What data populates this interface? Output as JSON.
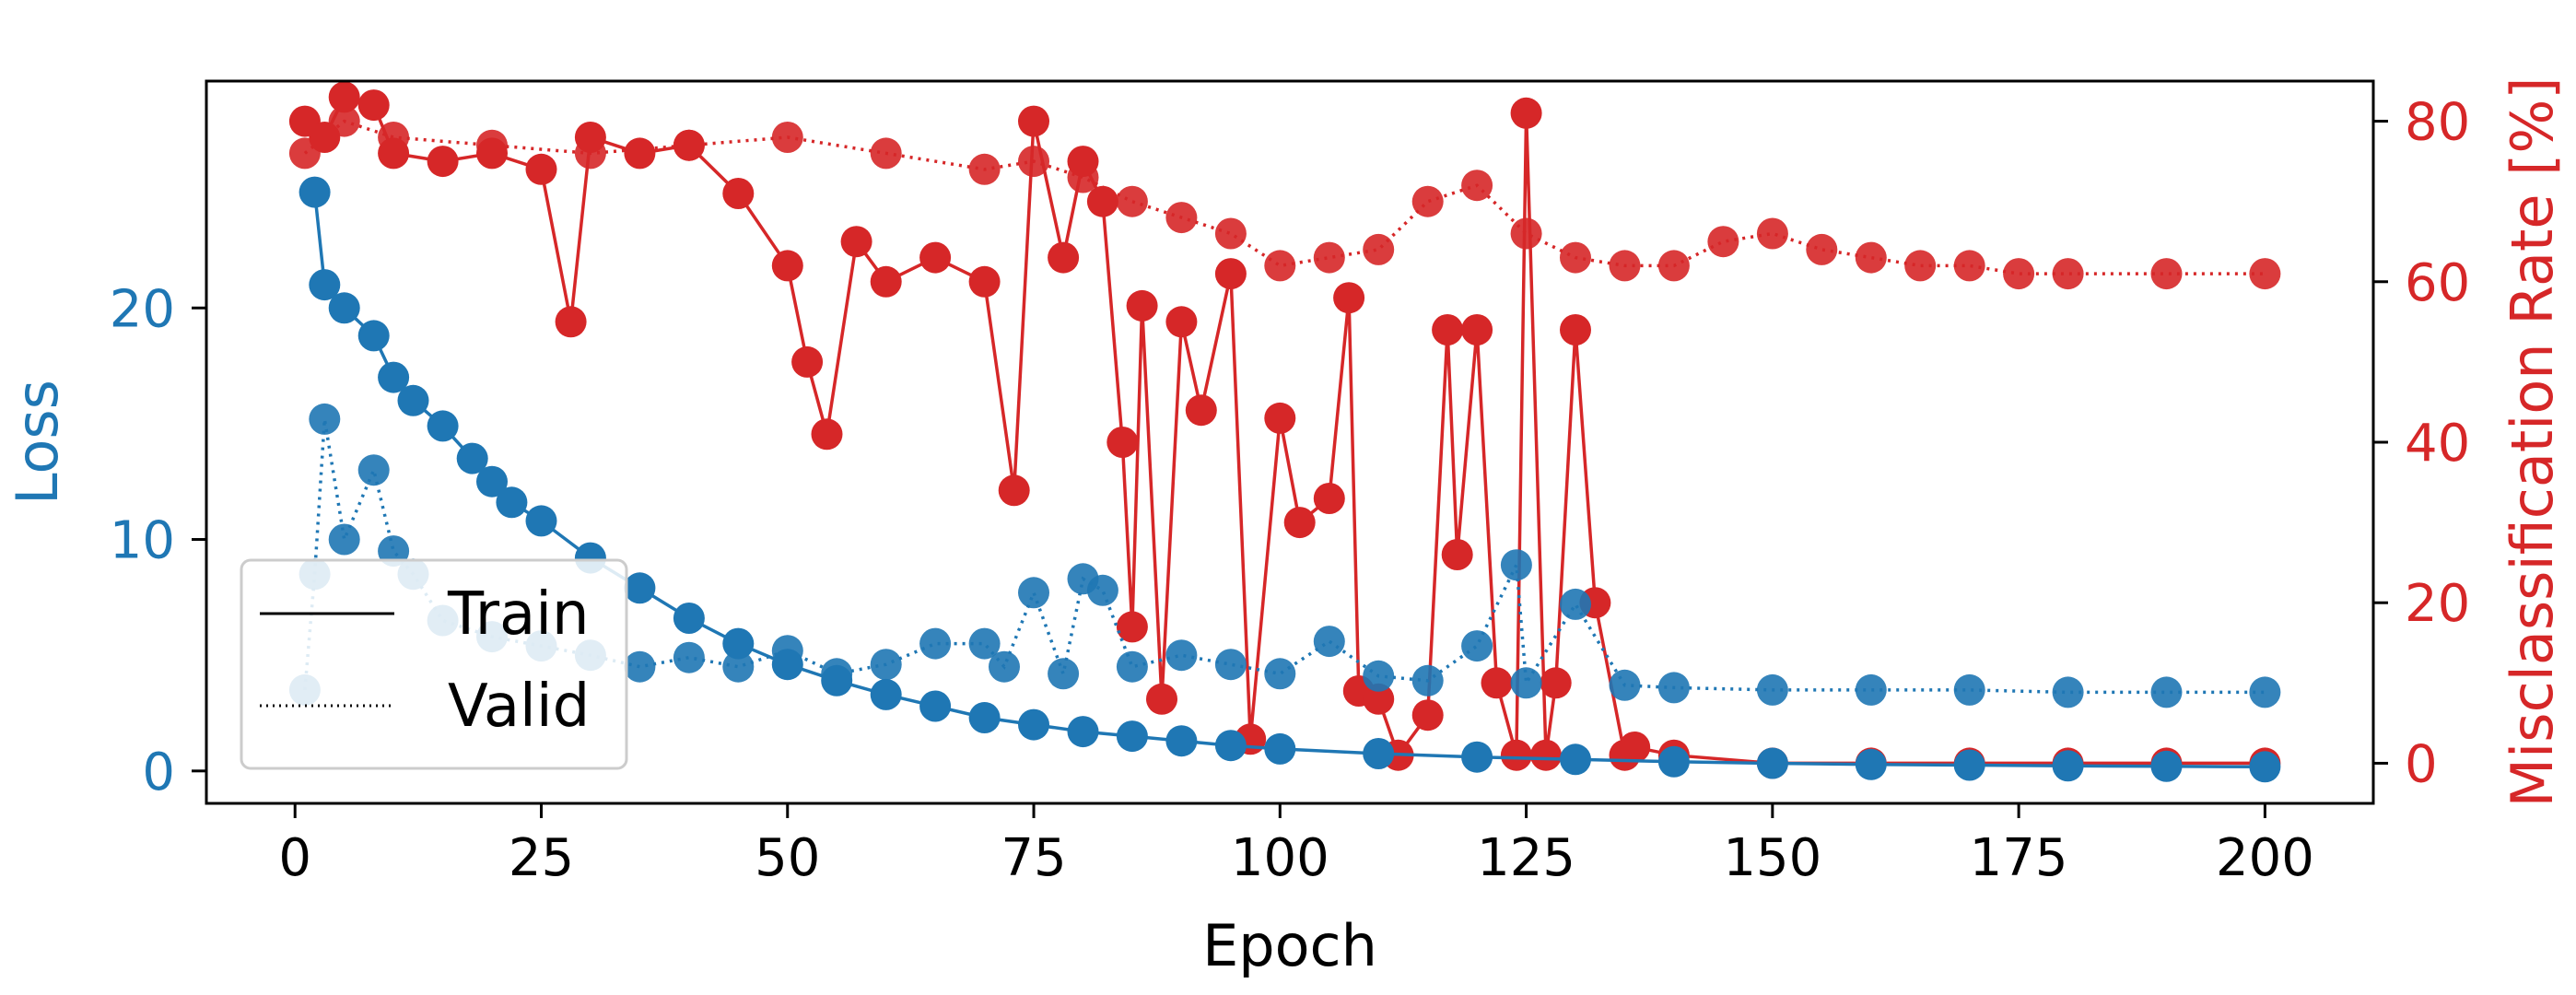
{
  "chart_data": {
    "type": "line",
    "xlabel": "Epoch",
    "ylabel": "Loss",
    "y2label": "Misclassification Rate [%]",
    "xlim": [
      -9,
      211
    ],
    "ylim": [
      -1.4,
      29.8
    ],
    "y2lim": [
      -5,
      85
    ],
    "xticks": [
      0,
      25,
      50,
      75,
      100,
      125,
      150,
      175,
      200
    ],
    "yticks": [
      0,
      10,
      20
    ],
    "y2ticks": [
      0,
      20,
      40,
      60,
      80
    ],
    "grid": false,
    "legend_position": "lower-left",
    "legend": [
      {
        "label": "Train",
        "style": "solid"
      },
      {
        "label": "Valid",
        "style": "dotted"
      }
    ],
    "colors": {
      "loss": "#1f77b4",
      "rate": "#d62728",
      "frame": "#000000"
    },
    "series": [
      {
        "name": "Train",
        "metric": "loss",
        "axis": "left",
        "style": "solid",
        "x": [
          2,
          3,
          5,
          8,
          10,
          12,
          15,
          18,
          20,
          22,
          25,
          30,
          35,
          40,
          45,
          50,
          55,
          60,
          65,
          70,
          75,
          80,
          85,
          90,
          95,
          100,
          110,
          120,
          130,
          140,
          150,
          160,
          170,
          180,
          190,
          200
        ],
        "values": [
          25.0,
          21.0,
          20.0,
          18.8,
          17.0,
          16.0,
          14.9,
          13.5,
          12.5,
          11.6,
          10.8,
          9.2,
          7.9,
          6.6,
          5.5,
          4.6,
          3.9,
          3.3,
          2.8,
          2.3,
          2.0,
          1.7,
          1.5,
          1.3,
          1.1,
          0.95,
          0.75,
          0.6,
          0.5,
          0.4,
          0.33,
          0.28,
          0.25,
          0.22,
          0.2,
          0.18
        ]
      },
      {
        "name": "Valid",
        "metric": "loss",
        "axis": "left",
        "style": "dotted",
        "x": [
          1,
          2,
          3,
          5,
          8,
          10,
          12,
          15,
          20,
          25,
          30,
          35,
          40,
          45,
          50,
          55,
          60,
          65,
          70,
          72,
          75,
          78,
          80,
          82,
          85,
          90,
          95,
          100,
          105,
          110,
          115,
          120,
          124,
          125,
          130,
          135,
          140,
          150,
          160,
          170,
          180,
          190,
          200
        ],
        "values": [
          3.5,
          8.5,
          15.2,
          10.0,
          13.0,
          9.5,
          8.5,
          6.5,
          5.8,
          5.4,
          5.0,
          4.5,
          4.9,
          4.5,
          5.2,
          4.2,
          4.6,
          5.5,
          5.5,
          4.5,
          7.7,
          4.2,
          8.3,
          7.8,
          4.5,
          5.0,
          4.6,
          4.2,
          5.6,
          4.1,
          3.9,
          5.4,
          8.9,
          3.8,
          7.2,
          3.7,
          3.6,
          3.5,
          3.5,
          3.5,
          3.4,
          3.4,
          3.4
        ]
      },
      {
        "name": "Train",
        "metric": "misclassification_rate",
        "axis": "right",
        "style": "solid",
        "x": [
          1,
          3,
          5,
          8,
          10,
          15,
          20,
          25,
          28,
          30,
          35,
          40,
          45,
          50,
          52,
          54,
          57,
          60,
          65,
          70,
          73,
          75,
          78,
          80,
          82,
          84,
          85,
          86,
          88,
          90,
          92,
          95,
          97,
          100,
          102,
          105,
          107,
          108,
          110,
          112,
          115,
          117,
          118,
          120,
          122,
          124,
          125,
          127,
          128,
          130,
          132,
          135,
          136,
          140,
          150,
          160,
          170,
          180,
          190,
          200
        ],
        "values": [
          80,
          78,
          83,
          82,
          76,
          75,
          76,
          74,
          55,
          78,
          76,
          77,
          71,
          62,
          50,
          41,
          65,
          60,
          63,
          60,
          34,
          80,
          63,
          75,
          70,
          40,
          17,
          57,
          8,
          55,
          44,
          61,
          3,
          43,
          30,
          33,
          58,
          9,
          8,
          1,
          6,
          54,
          26,
          54,
          10,
          1,
          81,
          1,
          10,
          54,
          20,
          1,
          2,
          1,
          0,
          0,
          0,
          0,
          0,
          0
        ]
      },
      {
        "name": "Valid",
        "metric": "misclassification_rate",
        "axis": "right",
        "style": "dotted",
        "x": [
          1,
          5,
          10,
          20,
          30,
          40,
          50,
          60,
          70,
          75,
          80,
          85,
          90,
          95,
          100,
          105,
          110,
          115,
          120,
          125,
          130,
          135,
          140,
          145,
          150,
          155,
          160,
          165,
          170,
          175,
          180,
          190,
          200
        ],
        "values": [
          76,
          80,
          78,
          77,
          76,
          77,
          78,
          76,
          74,
          75,
          73,
          70,
          68,
          66,
          62,
          63,
          64,
          70,
          72,
          66,
          63,
          62,
          62,
          65,
          66,
          64,
          63,
          62,
          62,
          61,
          61,
          61,
          61
        ]
      }
    ]
  }
}
